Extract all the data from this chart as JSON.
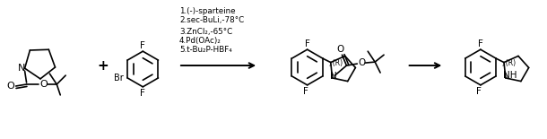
{
  "background_color": "#ffffff",
  "line_color": "#000000",
  "reaction_conditions": [
    "1.(-)-sparteine",
    "2.sec-BuLi,-78°C",
    "3.ZnCl₂,-65°C",
    "4.Pd(OAc)₂",
    "5.t-Bu₂P-HBF₄"
  ],
  "figsize": [
    6.1,
    1.55
  ],
  "dpi": 100
}
